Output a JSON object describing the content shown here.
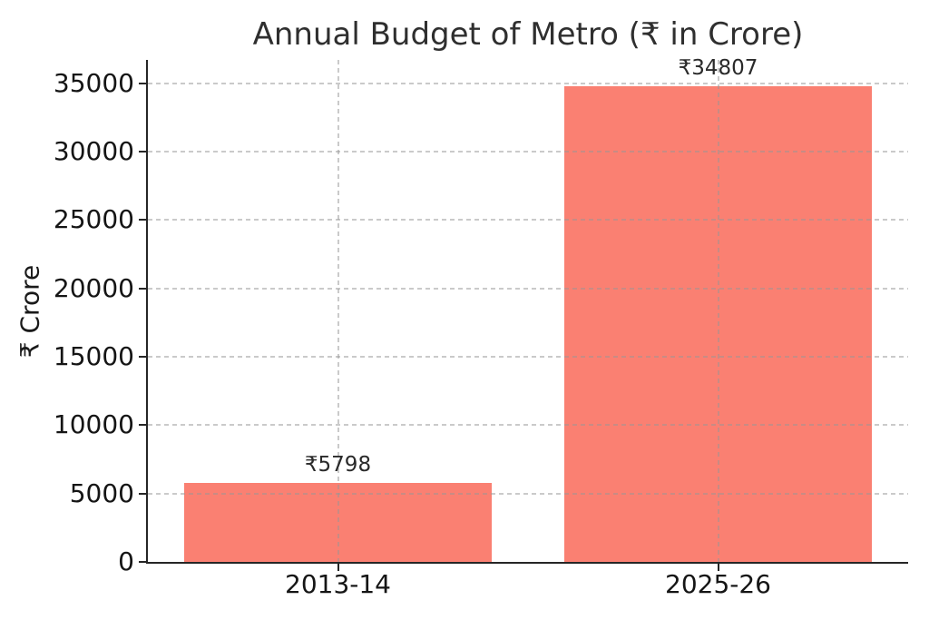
{
  "chart_data": {
    "type": "bar",
    "title": "Annual Budget of Metro (₹ in Crore)",
    "xlabel": "",
    "ylabel": "₹ Crore",
    "categories": [
      "2013-14",
      "2025-26"
    ],
    "values": [
      5798,
      34807
    ],
    "bar_labels": [
      "₹5798",
      "₹34807"
    ],
    "series": [
      {
        "name": "Annual Budget",
        "values": [
          5798,
          34807
        ]
      }
    ],
    "yticks": [
      0,
      5000,
      10000,
      15000,
      20000,
      25000,
      30000,
      35000
    ],
    "ylim": [
      0,
      36700
    ],
    "grid": true,
    "grid_style": "dashed",
    "legend": "none",
    "colors": {
      "bar": "#fa8072",
      "grid": "#bfbfbf",
      "spine": "#262626",
      "text": "#1a1a1a",
      "background": "#ffffff"
    }
  }
}
